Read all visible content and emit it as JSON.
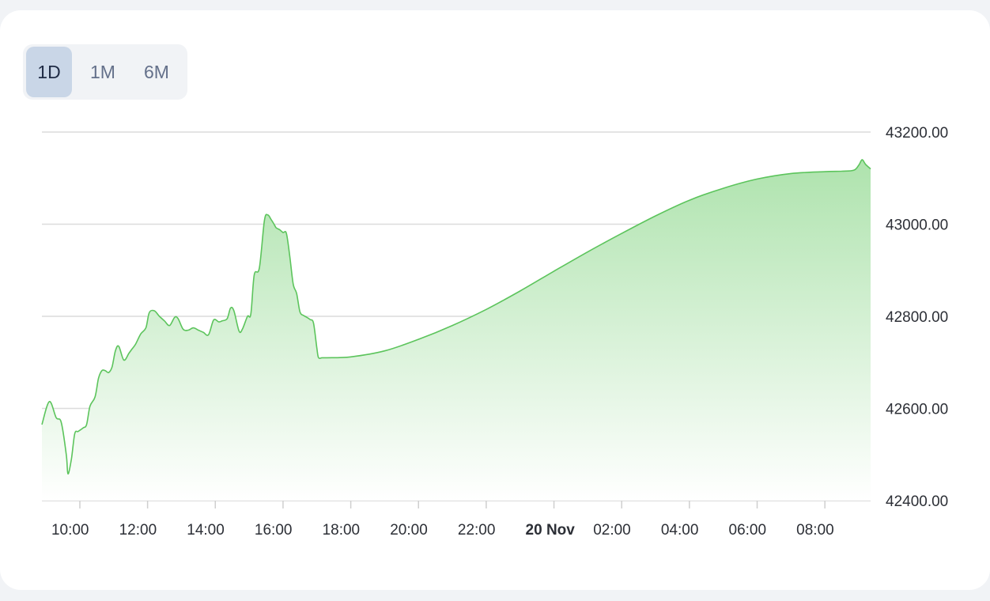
{
  "range_tabs": [
    {
      "label": "1D",
      "active": true
    },
    {
      "label": "1M",
      "active": false
    },
    {
      "label": "6M",
      "active": false
    }
  ],
  "colors": {
    "line": "#5cc45c",
    "fill_top": "#aee3ad",
    "fill_bottom": "#ffffff",
    "grid": "#dcdcdc",
    "active_tab": "#c9d6e7"
  },
  "chart_data": {
    "type": "area",
    "title": "",
    "xlabel": "",
    "ylabel": "",
    "grid": true,
    "y_axis_position": "right",
    "x_range": [
      8.88,
      33.35
    ],
    "ylim": [
      42400,
      43200
    ],
    "y_ticks": [
      "43200.00",
      "43000.00",
      "42800.00",
      "42600.00",
      "42400.00"
    ],
    "x_ticks": [
      {
        "t": 10,
        "label": "10:00",
        "bold": false
      },
      {
        "t": 12,
        "label": "12:00",
        "bold": false
      },
      {
        "t": 14,
        "label": "14:00",
        "bold": false
      },
      {
        "t": 16,
        "label": "16:00",
        "bold": false
      },
      {
        "t": 18,
        "label": "18:00",
        "bold": false
      },
      {
        "t": 20,
        "label": "20:00",
        "bold": false
      },
      {
        "t": 22,
        "label": "22:00",
        "bold": false
      },
      {
        "t": 24,
        "label": "20 Nov",
        "bold": true
      },
      {
        "t": 26,
        "label": "02:00",
        "bold": false
      },
      {
        "t": 28,
        "label": "04:00",
        "bold": false
      },
      {
        "t": 30,
        "label": "06:00",
        "bold": false
      },
      {
        "t": 32,
        "label": "08:00",
        "bold": false
      }
    ],
    "series": [
      {
        "x": [
          8.88,
          9.1,
          9.3,
          9.45,
          9.6,
          9.65,
          9.75,
          9.85,
          9.95,
          10.1,
          10.2,
          10.3,
          10.45,
          10.55,
          10.65,
          10.75,
          10.85,
          10.95,
          11.05,
          11.15,
          11.3,
          11.45,
          11.55,
          11.65,
          11.8,
          11.95,
          12.05,
          12.2,
          12.35,
          12.5,
          12.65,
          12.8,
          12.9,
          13.05,
          13.2,
          13.35,
          13.5,
          13.65,
          13.8,
          13.95,
          14.1,
          14.2,
          14.35,
          14.45,
          14.55,
          14.7,
          14.8,
          14.95,
          15.05,
          15.15,
          15.3,
          15.45,
          15.55,
          15.65,
          15.75,
          15.8,
          15.9,
          16.0,
          16.1,
          16.2,
          16.3,
          16.4,
          16.5,
          16.6,
          16.7,
          16.8,
          16.9,
          17.0,
          17.05,
          17.15,
          17.3,
          18.0,
          19.0,
          20.0,
          21.0,
          22.0,
          23.0,
          24.0,
          25.0,
          26.0,
          27.0,
          28.0,
          29.0,
          30.0,
          31.0,
          32.0,
          32.5,
          32.85,
          33.0,
          33.1,
          33.2,
          33.35
        ],
        "y": [
          42565,
          42615,
          42580,
          42570,
          42500,
          42458,
          42490,
          42545,
          42550,
          42558,
          42565,
          42605,
          42625,
          42665,
          42682,
          42682,
          42678,
          42690,
          42725,
          42735,
          42705,
          42720,
          42730,
          42740,
          42762,
          42775,
          42808,
          42812,
          42800,
          42790,
          42780,
          42798,
          42795,
          42772,
          42770,
          42775,
          42770,
          42765,
          42760,
          42792,
          42788,
          42790,
          42795,
          42818,
          42812,
          42768,
          42772,
          42800,
          42805,
          42890,
          42905,
          43008,
          43020,
          43010,
          42998,
          42992,
          42988,
          42982,
          42980,
          42930,
          42870,
          42850,
          42810,
          42802,
          42798,
          42793,
          42785,
          42730,
          42710,
          42710,
          42710,
          42712,
          42725,
          42750,
          42780,
          42815,
          42855,
          42898,
          42940,
          42980,
          43018,
          43052,
          43078,
          43098,
          43110,
          43114,
          43115,
          43117,
          43128,
          43140,
          43130,
          43120
        ]
      }
    ]
  }
}
